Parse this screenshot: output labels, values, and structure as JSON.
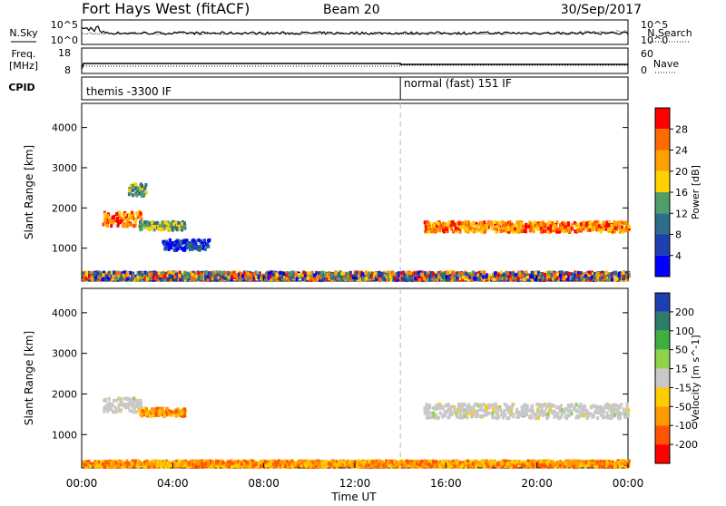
{
  "header": {
    "station": "Fort Hays West (fitACF)",
    "beam": "Beam 20",
    "date": "30/Sep/2017"
  },
  "noise_panel": {
    "left_label": "N.Sky",
    "left_ticks": [
      "10^5",
      "10^0"
    ],
    "right_label": "N.Search",
    "right_ticks": [
      "10^5",
      "10^0"
    ]
  },
  "freq_panel": {
    "label_line1": "Freq.",
    "label_line2": "[MHz]",
    "left_ticks": [
      "18",
      "8"
    ],
    "right_label": "Nave",
    "right_ticks": [
      "60",
      "0"
    ]
  },
  "cpid_panel": {
    "label": "CPID",
    "modes": [
      "themis -3300 IF",
      "normal (fast) 151 IF"
    ],
    "mode_change_time": "14:00"
  },
  "time_axis": {
    "label": "Time UT",
    "ticks": [
      "00:00",
      "04:00",
      "08:00",
      "12:00",
      "16:00",
      "20:00",
      "00:00"
    ]
  },
  "chart_data": [
    {
      "type": "heatmap",
      "name": "power",
      "ylabel": "Slant Range [km]",
      "yticks": [
        1000,
        2000,
        3000,
        4000
      ],
      "ylim": [
        180,
        4600
      ],
      "xlim_hours": [
        0,
        24
      ],
      "colorbar": {
        "label": "Power [dB]",
        "ticks": [
          "28",
          "24",
          "20",
          "16",
          "12",
          "8",
          "4"
        ],
        "colors": [
          "#ff0000",
          "#ff6a00",
          "#ff9f00",
          "#ffd200",
          "#4f9e6a",
          "#2c6e8a",
          "#1f3fb0",
          "#0000ff"
        ]
      },
      "echo_regions": [
        {
          "t": [
            0.9,
            2.6
          ],
          "r": [
            1550,
            1900
          ],
          "level": "high"
        },
        {
          "t": [
            2.0,
            2.8
          ],
          "r": [
            2300,
            2600
          ],
          "level": "medium"
        },
        {
          "t": [
            2.5,
            4.5
          ],
          "r": [
            1450,
            1650
          ],
          "level": "medium"
        },
        {
          "t": [
            3.5,
            5.6
          ],
          "r": [
            950,
            1200
          ],
          "level": "low"
        },
        {
          "t": [
            15.0,
            24.0
          ],
          "r": [
            1400,
            1650
          ],
          "level": "high"
        },
        {
          "t": [
            0.0,
            24.0
          ],
          "r": [
            200,
            400
          ],
          "level": "mixed"
        }
      ]
    },
    {
      "type": "heatmap",
      "name": "velocity",
      "ylabel": "Slant Range [km]",
      "yticks": [
        1000,
        2000,
        3000,
        4000
      ],
      "ylim": [
        180,
        4600
      ],
      "xlim_hours": [
        0,
        24
      ],
      "colorbar": {
        "label": "Velocity [m s^-1]",
        "ticks": [
          "200",
          "100",
          "50",
          "15",
          "-15",
          "-50",
          "-100",
          "-200"
        ],
        "colors": [
          "#1f3fb0",
          "#2c7c6a",
          "#3fae3f",
          "#8ed44b",
          "#c8c8c8",
          "#ffcc00",
          "#ff9900",
          "#ff5500",
          "#ff0000"
        ]
      },
      "echo_regions": [
        {
          "t": [
            0.9,
            2.6
          ],
          "r": [
            1550,
            1900
          ],
          "level": "near-zero"
        },
        {
          "t": [
            2.5,
            4.5
          ],
          "r": [
            1450,
            1650
          ],
          "level": "negative"
        },
        {
          "t": [
            15.0,
            24.0
          ],
          "r": [
            1400,
            1750
          ],
          "level": "near-zero"
        },
        {
          "t": [
            0.0,
            24.0
          ],
          "r": [
            200,
            350
          ],
          "level": "negative"
        }
      ]
    }
  ]
}
